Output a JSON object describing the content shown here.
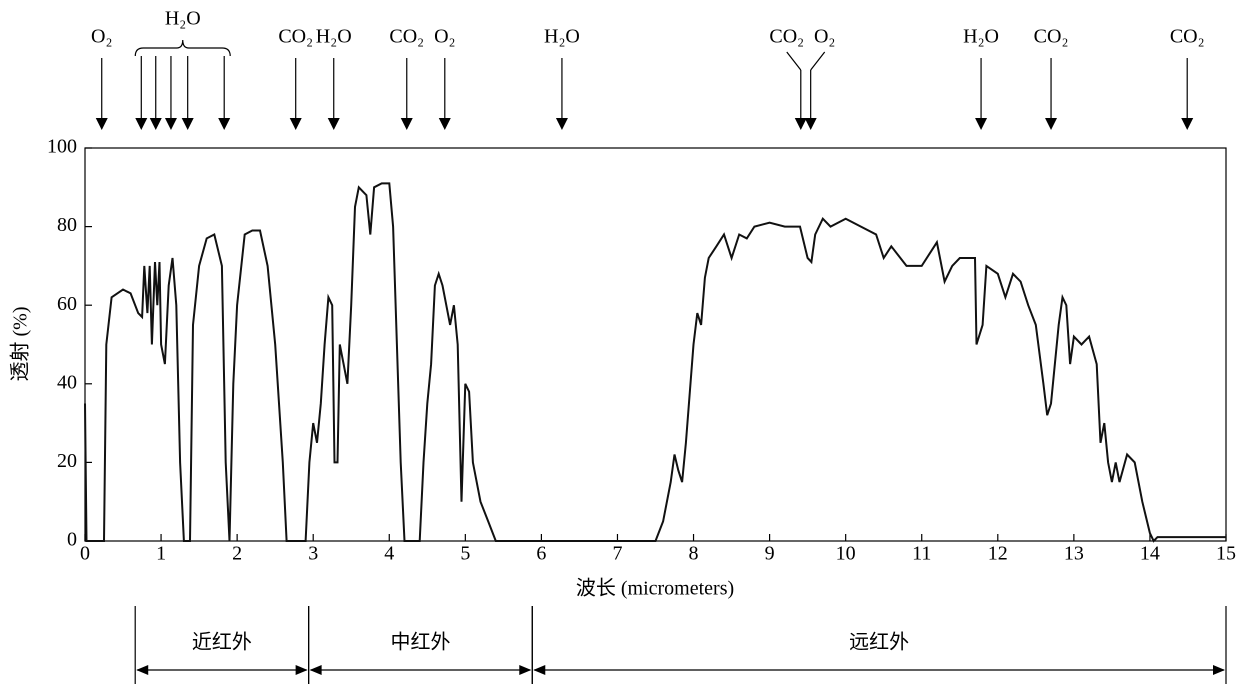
{
  "chart_data": {
    "type": "line",
    "xlabel": "波长 (micrometers)",
    "ylabel": "透射 (%)",
    "xlim": [
      0,
      15
    ],
    "ylim": [
      0,
      100
    ],
    "xticks": [
      0,
      1,
      2,
      3,
      4,
      5,
      6,
      7,
      8,
      9,
      10,
      11,
      12,
      13,
      14,
      15
    ],
    "yticks": [
      0,
      20,
      40,
      60,
      80,
      100
    ],
    "grid": false,
    "color": "#111111",
    "x": [
      0,
      0.02,
      0.2,
      0.25,
      0.28,
      0.35,
      0.5,
      0.6,
      0.7,
      0.75,
      0.78,
      0.82,
      0.85,
      0.88,
      0.92,
      0.95,
      0.98,
      1.0,
      1.05,
      1.1,
      1.15,
      1.2,
      1.25,
      1.3,
      1.38,
      1.42,
      1.5,
      1.6,
      1.7,
      1.8,
      1.85,
      1.9,
      1.95,
      2.0,
      2.1,
      2.2,
      2.3,
      2.4,
      2.5,
      2.6,
      2.65,
      2.9,
      2.95,
      3.0,
      3.05,
      3.1,
      3.15,
      3.2,
      3.25,
      3.28,
      3.32,
      3.35,
      3.4,
      3.45,
      3.5,
      3.55,
      3.6,
      3.7,
      3.75,
      3.8,
      3.9,
      4.0,
      4.05,
      4.1,
      4.15,
      4.2,
      4.4,
      4.45,
      4.5,
      4.55,
      4.6,
      4.65,
      4.7,
      4.75,
      4.8,
      4.85,
      4.9,
      4.95,
      5.0,
      5.05,
      5.1,
      5.2,
      5.3,
      5.4,
      6,
      7.5,
      7.6,
      7.7,
      7.75,
      7.8,
      7.85,
      7.9,
      8.0,
      8.05,
      8.1,
      8.15,
      8.2,
      8.3,
      8.4,
      8.5,
      8.6,
      8.7,
      8.8,
      9.0,
      9.2,
      9.4,
      9.5,
      9.55,
      9.6,
      9.7,
      9.8,
      10.0,
      10.2,
      10.4,
      10.5,
      10.6,
      10.8,
      11.0,
      11.2,
      11.3,
      11.4,
      11.5,
      11.6,
      11.7,
      11.72,
      11.8,
      11.85,
      12.0,
      12.1,
      12.2,
      12.3,
      12.4,
      12.5,
      12.6,
      12.65,
      12.7,
      12.8,
      12.85,
      12.9,
      12.95,
      13.0,
      13.1,
      13.2,
      13.3,
      13.35,
      13.4,
      13.45,
      13.5,
      13.55,
      13.6,
      13.7,
      13.8,
      13.9,
      14.0,
      14.05,
      14.1,
      15
    ],
    "values": [
      35,
      0,
      0,
      0,
      50,
      62,
      64,
      63,
      58,
      57,
      70,
      58,
      70,
      50,
      71,
      60,
      71,
      50,
      45,
      65,
      72,
      60,
      20,
      0,
      0,
      55,
      70,
      77,
      78,
      70,
      20,
      0,
      40,
      60,
      78,
      79,
      79,
      70,
      50,
      20,
      0,
      0,
      20,
      30,
      25,
      35,
      50,
      62,
      60,
      20,
      20,
      50,
      45,
      40,
      60,
      85,
      90,
      88,
      78,
      90,
      91,
      91,
      80,
      50,
      20,
      0,
      0,
      20,
      35,
      45,
      65,
      68,
      65,
      60,
      55,
      60,
      50,
      10,
      40,
      38,
      20,
      10,
      5,
      0,
      0,
      0,
      5,
      15,
      22,
      18,
      15,
      25,
      50,
      58,
      55,
      67,
      72,
      75,
      78,
      72,
      78,
      77,
      80,
      81,
      80,
      80,
      72,
      71,
      78,
      82,
      80,
      82,
      80,
      78,
      72,
      75,
      70,
      70,
      76,
      66,
      70,
      72,
      72,
      72,
      50,
      55,
      70,
      68,
      62,
      68,
      66,
      60,
      55,
      40,
      32,
      35,
      55,
      62,
      60,
      45,
      52,
      50,
      52,
      45,
      25,
      30,
      20,
      15,
      20,
      15,
      22,
      20,
      10,
      2,
      0,
      1,
      1
    ],
    "absorptions": [
      {
        "label": "O₂",
        "x": [
          0.22
        ]
      },
      {
        "label": "H₂O",
        "x": [
          0.74,
          0.93,
          1.13,
          1.35,
          1.83
        ]
      },
      {
        "label": "CO₂",
        "x": [
          2.77
        ]
      },
      {
        "label": "H₂O",
        "x": [
          3.27
        ]
      },
      {
        "label": "CO₂",
        "x": [
          4.23
        ]
      },
      {
        "label": "O₂",
        "x": [
          4.73
        ]
      },
      {
        "label": "H₂O",
        "x": [
          6.27
        ]
      },
      {
        "label": "CO₂",
        "x": [
          9.41
        ]
      },
      {
        "label": "O₂",
        "x": [
          9.54
        ]
      },
      {
        "label": "H₂O",
        "x": [
          11.78
        ]
      },
      {
        "label": "CO₂",
        "x": [
          12.7
        ]
      },
      {
        "label": "CO₂",
        "x": [
          14.49
        ]
      }
    ],
    "regions": [
      {
        "label": "近红外",
        "range": [
          0.66,
          2.94
        ]
      },
      {
        "label": "中红外",
        "range": [
          2.94,
          5.88
        ]
      },
      {
        "label": "远红外",
        "range": [
          5.88,
          15
        ]
      }
    ]
  }
}
